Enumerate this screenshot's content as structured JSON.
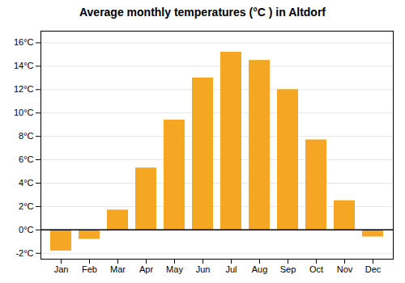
{
  "chart_data": {
    "type": "bar",
    "title": "Average monthly temperatures (°C ) in Altdorf",
    "categories": [
      "Jan",
      "Feb",
      "Mar",
      "Apr",
      "May",
      "Jun",
      "Jul",
      "Aug",
      "Sep",
      "Oct",
      "Nov",
      "Dec"
    ],
    "values": [
      -1.8,
      -0.8,
      1.7,
      5.3,
      9.4,
      13.0,
      15.2,
      14.5,
      12.0,
      7.7,
      2.5,
      -0.6
    ],
    "color": "#F5A623",
    "ylim": [
      -2.5,
      17.0
    ],
    "yticks": [
      {
        "value": -2,
        "label": "-2°C"
      },
      {
        "value": 0,
        "label": "0°C"
      },
      {
        "value": 2,
        "label": "2°C"
      },
      {
        "value": 4,
        "label": "4°C"
      },
      {
        "value": 6,
        "label": "6°C"
      },
      {
        "value": 8,
        "label": "8°C"
      },
      {
        "value": 10,
        "label": "10°C"
      },
      {
        "value": 12,
        "label": "12°C"
      },
      {
        "value": 14,
        "label": "14°C"
      },
      {
        "value": 16,
        "label": "16°C"
      }
    ],
    "grid": true
  }
}
